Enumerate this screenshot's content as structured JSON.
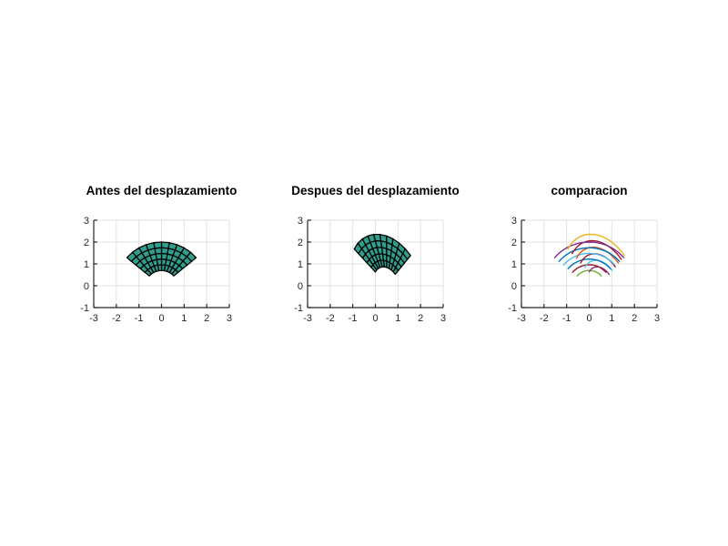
{
  "figure": {
    "background": "#ffffff"
  },
  "style": {
    "axis_color": "#262626",
    "grid_color": "#e2e2e2",
    "mesh_fill": "#2F9E8C",
    "mesh_edge": "#000000"
  },
  "chart_data": [
    {
      "type": "mesh",
      "title": "Antes del desplazamiento",
      "xlabel": "",
      "ylabel": "",
      "xlim": [
        -3,
        3
      ],
      "ylim": [
        -1,
        3
      ],
      "xticks": [
        -3,
        -2,
        -1,
        0,
        1,
        2,
        3
      ],
      "yticks": [
        -1,
        0,
        1,
        2,
        3
      ],
      "grid": true,
      "mesh": {
        "r_min": 0.7,
        "r_max": 2.0,
        "rings": 5,
        "theta_start_deg": 40,
        "theta_end_deg": 140,
        "sectors": 10,
        "fill": "#2F9E8C",
        "edge": "#000000"
      },
      "transform": null
    },
    {
      "type": "mesh",
      "title": "Despues del desplazamiento",
      "xlabel": "",
      "ylabel": "",
      "xlim": [
        -3,
        3
      ],
      "ylim": [
        -1,
        3
      ],
      "xticks": [
        -3,
        -2,
        -1,
        0,
        1,
        2,
        3
      ],
      "yticks": [
        -1,
        0,
        1,
        2,
        3
      ],
      "grid": true,
      "mesh": {
        "r_min": 0.7,
        "r_max": 2.0,
        "rings": 5,
        "theta_start_deg": 40,
        "theta_end_deg": 140,
        "sectors": 10,
        "fill": "#2F9E8C",
        "edge": "#000000"
      },
      "transform": [
        0.816,
        -0.154,
        0.508,
        -0.098,
        1.145,
        0.062
      ]
    },
    {
      "type": "line",
      "title": "comparacion",
      "xlabel": "",
      "ylabel": "",
      "xlim": [
        -3,
        3
      ],
      "ylim": [
        -1,
        3
      ],
      "xticks": [
        -3,
        -2,
        -1,
        0,
        1,
        2,
        3
      ],
      "yticks": [
        -1,
        0,
        1,
        2,
        3
      ],
      "grid": true,
      "theta_range_deg": [
        40,
        140
      ],
      "affine_after": [
        0.816,
        -0.154,
        0.508,
        -0.098,
        1.145,
        0.062
      ],
      "arcs": [
        {
          "r": 0.7,
          "mesh": "before",
          "color": "#77AC30"
        },
        {
          "r": 0.7,
          "mesh": "after",
          "color": "#7E2F8E"
        },
        {
          "r": 0.96,
          "mesh": "before",
          "color": "#A2142F"
        },
        {
          "r": 0.96,
          "mesh": "after",
          "color": "#4DBEEE"
        },
        {
          "r": 1.22,
          "mesh": "before",
          "color": "#0072BD"
        },
        {
          "r": 1.22,
          "mesh": "after",
          "color": "#A2142F"
        },
        {
          "r": 1.48,
          "mesh": "before",
          "color": "#4DBEEE"
        },
        {
          "r": 1.48,
          "mesh": "after",
          "color": "#D95319"
        },
        {
          "r": 1.74,
          "mesh": "before",
          "color": "#0072BD"
        },
        {
          "r": 1.74,
          "mesh": "after",
          "color": "#A2142F"
        },
        {
          "r": 2.0,
          "mesh": "before",
          "color": "#7E2F8E"
        },
        {
          "r": 2.0,
          "mesh": "after",
          "color": "#EDB120"
        }
      ]
    }
  ]
}
